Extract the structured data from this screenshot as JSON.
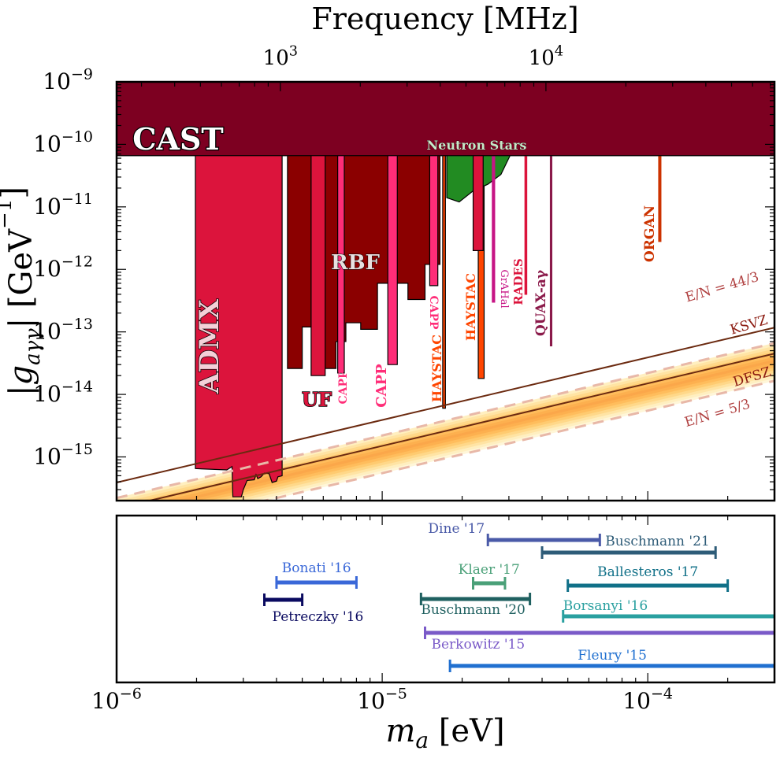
{
  "chart_data": [
    {
      "type": "area",
      "title": "",
      "xlabel": "m_a [eV]",
      "ylabel": "|g_aγγ| [GeV^-1]",
      "x_scale": "log",
      "y_scale": "log",
      "xlim": [
        1e-06,
        0.0003
      ],
      "ylim": [
        2e-16,
        1e-09
      ],
      "x_ticks": [
        "10^-6",
        "10^-5",
        "10^-4"
      ],
      "y_ticks": [
        "10^-15",
        "10^-14",
        "10^-13",
        "10^-12",
        "10^-11",
        "10^-10",
        "10^-9"
      ],
      "top_axis": {
        "label": "Frequency [MHz]",
        "ticks": [
          "10^3",
          "10^4"
        ],
        "tick_values_MHz": [
          1000,
          10000
        ]
      },
      "theory_lines": [
        {
          "name": "E/N = 44/3",
          "style": "dashed",
          "color": "#e8b8a8",
          "g_at_1e-6": 2.2e-16,
          "slope": 1
        },
        {
          "name": "KSVZ",
          "style": "solid",
          "color": "#6b2a10",
          "g_at_1e-6": 3.9e-16,
          "slope": 1
        },
        {
          "name": "DFSZ",
          "style": "solid",
          "color": "#6b2a10",
          "g_at_1e-6": 1.5e-16,
          "slope": 1
        },
        {
          "name": "E/N = 5/3",
          "style": "dashed",
          "color": "#e8b8a8",
          "g_at_1e-6": 5.5e-17,
          "slope": 1
        }
      ],
      "theory_band": {
        "color": "#fba74a",
        "from": "E/N = 5/3",
        "to": "E/N = 44/3"
      },
      "exclusions": [
        {
          "name": "CAST",
          "type": "band",
          "color": "#7d0021",
          "x_range": [
            1e-06,
            0.0003
          ],
          "g_lower": 6.6e-11,
          "g_upper": 1e-09
        },
        {
          "name": "ADMX",
          "type": "region",
          "color": "#dc143c",
          "points": [
            [
              1.98e-06,
              1e-09
            ],
            [
              1.98e-06,
              6.5e-16
            ],
            [
              2.6e-06,
              6.2e-16
            ],
            [
              2.72e-06,
              7e-16
            ],
            [
              2.74e-06,
              2.3e-16
            ],
            [
              2.95e-06,
              2.3e-16
            ],
            [
              3e-06,
              3e-16
            ],
            [
              3.1e-06,
              4.2e-16
            ],
            [
              3.3e-06,
              4.3e-16
            ],
            [
              3.35e-06,
              5.2e-16
            ],
            [
              3.4e-06,
              4.5e-16
            ],
            [
              3.5e-06,
              4.8e-16
            ],
            [
              3.6e-06,
              5.5e-16
            ],
            [
              3.75e-06,
              5.4e-16
            ],
            [
              3.85e-06,
              3.9e-16
            ],
            [
              4e-06,
              4.1e-16
            ],
            [
              4.05e-06,
              4.8e-16
            ],
            [
              4.2e-06,
              5e-16
            ],
            [
              4.2e-06,
              1e-09
            ]
          ]
        },
        {
          "name": "RBF",
          "type": "region",
          "color": "#8b0000",
          "points": [
            [
              4.4e-06,
              1e-09
            ],
            [
              4.4e-06,
              2.6e-14
            ],
            [
              5e-06,
              2.6e-14
            ],
            [
              5e-06,
              1.2e-13
            ],
            [
              6e-06,
              1.2e-13
            ],
            [
              6e-06,
              2.6e-14
            ],
            [
              6.7e-06,
              2.6e-14
            ],
            [
              6.7e-06,
              7e-14
            ],
            [
              7.3e-06,
              7e-14
            ],
            [
              7.3e-06,
              1.4e-13
            ],
            [
              8.3e-06,
              1.4e-13
            ],
            [
              8.3e-06,
              1.1e-13
            ],
            [
              9.6e-06,
              1.1e-13
            ],
            [
              9.6e-06,
              6e-13
            ],
            [
              1.25e-05,
              6e-13
            ],
            [
              1.25e-05,
              3.3e-13
            ],
            [
              1.45e-05,
              3.3e-13
            ],
            [
              1.45e-05,
              1.2e-12
            ],
            [
              1.65e-05,
              1.2e-12
            ],
            [
              1.65e-05,
              1e-09
            ]
          ]
        },
        {
          "name": "UF",
          "type": "region",
          "color": "#dc143c",
          "points": [
            [
              5.4e-06,
              1e-09
            ],
            [
              5.4e-06,
              2e-14
            ],
            [
              6.1e-06,
              2e-14
            ],
            [
              6.1e-06,
              1e-09
            ]
          ]
        },
        {
          "name": "CAPP",
          "type": "region",
          "color": "#ff2d78",
          "points": [
            [
              6.8e-06,
              1e-09
            ],
            [
              6.8e-06,
              2.2e-14
            ],
            [
              7.2e-06,
              2.2e-14
            ],
            [
              7.2e-06,
              1e-09
            ]
          ]
        },
        {
          "name": "CAPP",
          "type": "region",
          "color": "#ff2d78",
          "points": [
            [
              1.05e-05,
              1e-09
            ],
            [
              1.05e-05,
              3e-14
            ],
            [
              1.14e-05,
              3e-14
            ],
            [
              1.14e-05,
              1e-09
            ]
          ]
        },
        {
          "name": "CAPP",
          "type": "region",
          "color": "#ff2d78",
          "points": [
            [
              1.51e-05,
              1e-09
            ],
            [
              1.51e-05,
              5.5e-13
            ],
            [
              1.62e-05,
              5.5e-13
            ],
            [
              1.62e-05,
              1e-09
            ]
          ]
        },
        {
          "name": "HAYSTAC",
          "type": "region",
          "color": "#ff4500",
          "points": [
            [
              1.69e-05,
              1e-09
            ],
            [
              1.69e-05,
              6e-15
            ],
            [
              1.73e-05,
              6e-15
            ],
            [
              1.73e-05,
              1e-09
            ]
          ]
        },
        {
          "name": "HAYSTAC",
          "type": "region",
          "color": "#ff4500",
          "points": [
            [
              2.3e-05,
              1e-09
            ],
            [
              2.3e-05,
              1.8e-14
            ],
            [
              2.42e-05,
              1.8e-14
            ],
            [
              2.42e-05,
              1e-09
            ]
          ]
        },
        {
          "name": "Neutron Stars",
          "type": "region",
          "color": "#228b22",
          "points": [
            [
              1.75e-05,
              1e-09
            ],
            [
              1.75e-05,
              1.4e-11
            ],
            [
              1.95e-05,
              1.2e-11
            ],
            [
              2.2e-05,
              1.8e-11
            ],
            [
              2.5e-05,
              2.3e-11
            ],
            [
              2.8e-05,
              3.3e-11
            ],
            [
              3.05e-05,
              7e-11
            ],
            [
              3.05e-05,
              1e-09
            ]
          ]
        },
        {
          "name": "",
          "type": "region",
          "color": "#dc143c",
          "points": [
            [
              2.2e-05,
              1e-09
            ],
            [
              2.2e-05,
              2e-12
            ],
            [
              2.4e-05,
              2e-12
            ],
            [
              2.4e-05,
              1e-09
            ]
          ]
        },
        {
          "name": "GrAHal",
          "type": "line",
          "color": "#c71585",
          "x_range": [
            2.6e-05,
            2.65e-05
          ],
          "g_lower": 3e-13
        },
        {
          "name": "RADES",
          "type": "line",
          "color": "#dc143c",
          "x_range": [
            3.45e-05,
            3.5e-05
          ],
          "g_lower": 4e-13
        },
        {
          "name": "QUAX-aγ",
          "type": "line",
          "color": "#8b1a4a",
          "x_range": [
            4.3e-05,
            4.35e-05
          ],
          "g_lower": 6e-14
        },
        {
          "name": "ORGAN",
          "type": "line",
          "color": "#cc3300",
          "x_range": [
            0.00011,
            0.000112
          ],
          "g_lower": 2.8e-12
        }
      ],
      "extra_labels": [
        "CAPP",
        "CAPP"
      ]
    },
    {
      "type": "range",
      "title": "",
      "xlabel": "m_a [eV]",
      "x_scale": "log",
      "xlim": [
        1e-06,
        0.0003
      ],
      "ranges": [
        {
          "name": "Dine '17",
          "x": [
            2.5e-05,
            6.6e-05
          ],
          "color": "#4a5aa8"
        },
        {
          "name": "Buschmann '21",
          "x": [
            4e-05,
            0.00018
          ],
          "color": "#2e5c78"
        },
        {
          "name": "Bonati '16",
          "x": [
            4e-06,
            8e-06
          ],
          "color": "#3a68d8"
        },
        {
          "name": "Klaer '17",
          "x": [
            2.2e-05,
            2.9e-05
          ],
          "color": "#4aa078"
        },
        {
          "name": "Ballesteros '17",
          "x": [
            5e-05,
            0.0002
          ],
          "color": "#107088"
        },
        {
          "name": "Petreczky '16",
          "x": [
            3.6e-06,
            5e-06
          ],
          "color": "#0a0a60"
        },
        {
          "name": "Buschmann '20",
          "x": [
            1.4e-05,
            3.6e-05
          ],
          "color": "#1f6060"
        },
        {
          "name": "Borsanyi '16",
          "x": [
            4.8e-05,
            0.0003
          ],
          "color": "#2aa0a0"
        },
        {
          "name": "Berkowitz '15",
          "x": [
            1.45e-05,
            0.0003
          ],
          "color": "#7a5ac8"
        },
        {
          "name": "Fleury '15",
          "x": [
            1.8e-05,
            0.0003
          ],
          "color": "#2070d0"
        }
      ]
    }
  ]
}
